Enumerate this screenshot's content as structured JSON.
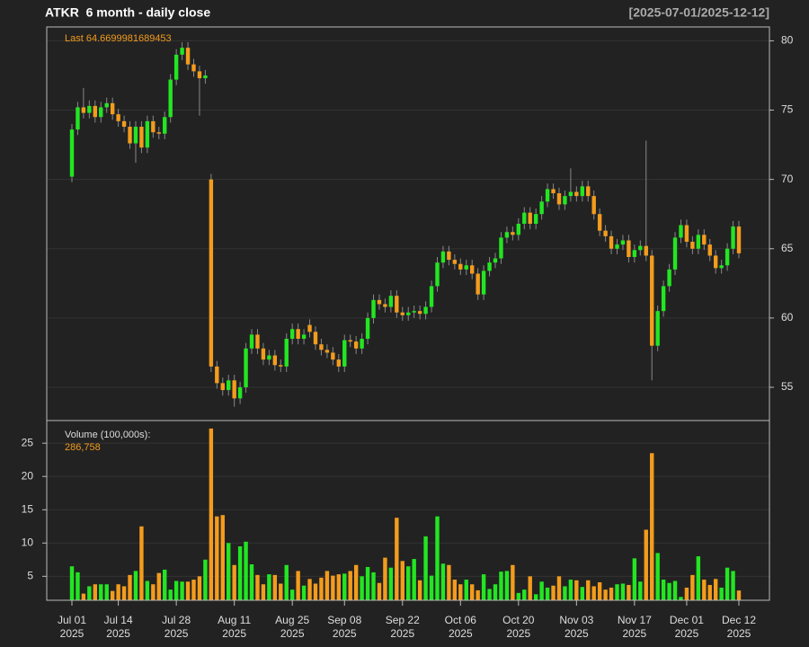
{
  "chart_data": {
    "type": "candlestick",
    "title": "ATKR  6 month - daily close",
    "subtitle": "[2025-07-01/2025-12-12]",
    "annotation": "Last 64.6699981689453",
    "up_color": "#22e622",
    "down_color": "#f39c1c",
    "grid": true,
    "x": [
      "2025-07-01",
      "2025-07-02",
      "2025-07-03",
      "2025-07-07",
      "2025-07-08",
      "2025-07-09",
      "2025-07-10",
      "2025-07-11",
      "2025-07-14",
      "2025-07-15",
      "2025-07-16",
      "2025-07-17",
      "2025-07-18",
      "2025-07-21",
      "2025-07-22",
      "2025-07-23",
      "2025-07-24",
      "2025-07-25",
      "2025-07-28",
      "2025-07-29",
      "2025-07-30",
      "2025-07-31",
      "2025-08-01",
      "2025-08-04",
      "2025-08-05",
      "2025-08-06",
      "2025-08-07",
      "2025-08-08",
      "2025-08-11",
      "2025-08-12",
      "2025-08-13",
      "2025-08-14",
      "2025-08-15",
      "2025-08-18",
      "2025-08-19",
      "2025-08-20",
      "2025-08-21",
      "2025-08-22",
      "2025-08-25",
      "2025-08-26",
      "2025-08-27",
      "2025-08-28",
      "2025-08-29",
      "2025-09-02",
      "2025-09-03",
      "2025-09-04",
      "2025-09-05",
      "2025-09-08",
      "2025-09-09",
      "2025-09-10",
      "2025-09-11",
      "2025-09-12",
      "2025-09-15",
      "2025-09-16",
      "2025-09-17",
      "2025-09-18",
      "2025-09-19",
      "2025-09-22",
      "2025-09-23",
      "2025-09-24",
      "2025-09-25",
      "2025-09-26",
      "2025-09-29",
      "2025-09-30",
      "2025-10-01",
      "2025-10-02",
      "2025-10-03",
      "2025-10-06",
      "2025-10-07",
      "2025-10-08",
      "2025-10-09",
      "2025-10-10",
      "2025-10-13",
      "2025-10-14",
      "2025-10-15",
      "2025-10-16",
      "2025-10-17",
      "2025-10-20",
      "2025-10-21",
      "2025-10-22",
      "2025-10-23",
      "2025-10-24",
      "2025-10-27",
      "2025-10-28",
      "2025-10-29",
      "2025-10-30",
      "2025-10-31",
      "2025-11-03",
      "2025-11-04",
      "2025-11-05",
      "2025-11-06",
      "2025-11-07",
      "2025-11-10",
      "2025-11-11",
      "2025-11-12",
      "2025-11-13",
      "2025-11-14",
      "2025-11-17",
      "2025-11-18",
      "2025-11-19",
      "2025-11-20",
      "2025-11-21",
      "2025-11-24",
      "2025-11-25",
      "2025-11-26",
      "2025-11-28",
      "2025-12-01",
      "2025-12-02",
      "2025-12-03",
      "2025-12-04",
      "2025-12-05",
      "2025-12-08",
      "2025-12-09",
      "2025-12-10",
      "2025-12-11",
      "2025-12-12"
    ],
    "open": [
      70.2,
      73.6,
      75.2,
      74.8,
      75.3,
      74.5,
      75.2,
      75.5,
      74.7,
      74.2,
      73.8,
      72.6,
      73.8,
      72.3,
      74.2,
      73.4,
      73.3,
      74.5,
      77.2,
      79.0,
      79.5,
      78.3,
      77.8,
      77.3,
      70.0,
      56.5,
      55.3,
      54.8,
      55.5,
      54.2,
      55.0,
      57.8,
      58.8,
      57.8,
      57.0,
      57.3,
      56.6,
      56.5,
      58.5,
      59.2,
      58.5,
      59.5,
      59.0,
      58.1,
      57.7,
      57.5,
      57.0,
      56.5,
      58.4,
      58.3,
      57.8,
      58.5,
      60.0,
      61.3,
      61.0,
      60.8,
      61.6,
      60.4,
      60.2,
      60.4,
      60.5,
      60.3,
      60.8,
      62.3,
      64.0,
      64.8,
      64.2,
      63.9,
      63.5,
      63.8,
      63.2,
      61.7,
      63.4,
      64.0,
      64.3,
      65.8,
      66.2,
      66.0,
      66.8,
      67.6,
      66.8,
      67.5,
      68.4,
      69.3,
      69.0,
      68.2,
      68.8,
      69.1,
      68.8,
      69.5,
      68.8,
      67.5,
      66.3,
      65.9,
      65.0,
      65.3,
      65.6,
      64.4,
      64.9,
      65.2,
      64.5,
      58.0,
      60.5,
      62.3,
      63.5,
      65.8,
      66.7,
      65.5,
      65.0,
      66.0,
      65.3,
      64.5,
      63.6,
      63.8,
      65.0,
      66.6
    ],
    "high": [
      74.0,
      75.6,
      76.6,
      75.7,
      75.7,
      75.6,
      75.9,
      75.9,
      75.1,
      74.6,
      74.2,
      74.2,
      74.2,
      74.6,
      74.6,
      73.8,
      74.9,
      77.6,
      79.4,
      79.9,
      79.9,
      78.7,
      78.2,
      77.9,
      70.4,
      56.9,
      55.7,
      55.9,
      55.9,
      55.4,
      58.2,
      59.2,
      59.2,
      58.2,
      57.7,
      57.7,
      57.0,
      58.9,
      59.6,
      59.6,
      59.2,
      59.9,
      59.4,
      58.5,
      58.1,
      57.9,
      57.4,
      58.8,
      58.8,
      58.7,
      58.9,
      60.4,
      61.7,
      61.7,
      61.4,
      62.0,
      62.0,
      60.8,
      60.8,
      60.9,
      60.9,
      61.2,
      62.7,
      64.4,
      65.2,
      65.2,
      64.6,
      64.3,
      64.2,
      64.2,
      63.6,
      63.8,
      64.4,
      64.7,
      66.2,
      66.6,
      66.6,
      67.2,
      68.0,
      68.0,
      67.9,
      68.8,
      69.7,
      69.7,
      69.4,
      69.2,
      70.8,
      69.5,
      69.9,
      69.9,
      69.2,
      67.9,
      66.7,
      66.3,
      65.7,
      66.0,
      66.0,
      65.3,
      65.6,
      72.8,
      64.9,
      60.9,
      62.7,
      63.9,
      66.2,
      67.1,
      67.1,
      65.9,
      66.4,
      66.4,
      65.7,
      64.9,
      64.2,
      65.4,
      67.0,
      67.0
    ],
    "low": [
      69.8,
      73.2,
      74.4,
      74.4,
      74.1,
      74.1,
      74.8,
      74.3,
      73.8,
      73.4,
      72.2,
      71.2,
      71.9,
      71.9,
      73.0,
      72.9,
      72.9,
      74.1,
      76.8,
      78.6,
      77.9,
      77.4,
      74.6,
      76.9,
      56.1,
      54.9,
      54.4,
      54.4,
      53.6,
      53.8,
      54.6,
      57.4,
      57.4,
      56.6,
      56.6,
      56.2,
      56.1,
      56.1,
      58.1,
      58.1,
      58.1,
      58.6,
      57.7,
      57.3,
      57.1,
      56.6,
      56.1,
      56.1,
      57.9,
      57.4,
      57.4,
      58.1,
      59.6,
      60.6,
      60.4,
      60.4,
      60.0,
      59.8,
      59.8,
      60.0,
      59.9,
      59.9,
      60.4,
      61.9,
      63.6,
      63.8,
      63.5,
      63.1,
      63.1,
      62.8,
      61.3,
      61.3,
      63.0,
      63.6,
      63.9,
      65.4,
      65.6,
      65.6,
      66.4,
      66.4,
      66.4,
      67.1,
      68.0,
      68.6,
      67.8,
      67.8,
      68.4,
      68.4,
      68.4,
      68.4,
      67.1,
      65.9,
      65.5,
      64.6,
      64.6,
      64.9,
      64.0,
      64.0,
      64.5,
      64.1,
      55.5,
      57.6,
      60.1,
      61.9,
      63.1,
      65.4,
      65.1,
      64.6,
      64.6,
      64.9,
      64.1,
      63.2,
      63.2,
      63.4,
      64.6,
      64.3
    ],
    "close": [
      73.6,
      75.2,
      74.8,
      75.3,
      74.5,
      75.2,
      75.5,
      74.7,
      74.2,
      73.8,
      72.6,
      73.8,
      72.3,
      74.2,
      73.4,
      73.3,
      74.5,
      77.2,
      79.0,
      79.5,
      78.3,
      77.8,
      77.3,
      77.5,
      56.5,
      55.3,
      54.8,
      55.5,
      54.2,
      55.0,
      57.8,
      58.8,
      57.8,
      57.0,
      57.3,
      56.6,
      56.5,
      58.5,
      59.2,
      58.5,
      58.8,
      59.0,
      58.1,
      57.7,
      57.5,
      57.0,
      56.5,
      58.4,
      58.3,
      57.8,
      58.5,
      60.0,
      61.3,
      61.0,
      60.8,
      61.6,
      60.4,
      60.2,
      60.4,
      60.5,
      60.3,
      60.8,
      62.3,
      64.0,
      64.8,
      64.2,
      63.9,
      63.5,
      63.8,
      63.2,
      61.7,
      63.4,
      64.0,
      64.3,
      65.8,
      66.2,
      66.0,
      66.8,
      67.6,
      66.8,
      67.5,
      68.4,
      69.3,
      69.0,
      68.2,
      68.8,
      69.1,
      68.8,
      69.5,
      68.8,
      67.5,
      66.3,
      65.9,
      65.0,
      65.3,
      65.6,
      64.4,
      64.9,
      65.2,
      64.5,
      58.0,
      60.5,
      62.3,
      63.5,
      65.8,
      66.7,
      65.5,
      65.0,
      66.0,
      65.3,
      64.5,
      63.6,
      63.8,
      65.0,
      66.6,
      64.6699981689453
    ],
    "ylim": [
      52.6,
      81.0
    ],
    "yticks": [
      55,
      60,
      65,
      70,
      75,
      80
    ],
    "xticks": [
      {
        "value": "2025-07-01",
        "label": [
          "Jul 01",
          "2025"
        ]
      },
      {
        "value": "2025-07-14",
        "label": [
          "Jul 14",
          "2025"
        ]
      },
      {
        "value": "2025-07-28",
        "label": [
          "Jul 28",
          "2025"
        ]
      },
      {
        "value": "2025-08-11",
        "label": [
          "Aug 11",
          "2025"
        ]
      },
      {
        "value": "2025-08-25",
        "label": [
          "Aug 25",
          "2025"
        ]
      },
      {
        "value": "2025-09-08",
        "label": [
          "Sep 08",
          "2025"
        ]
      },
      {
        "value": "2025-09-22",
        "label": [
          "Sep 22",
          "2025"
        ]
      },
      {
        "value": "2025-10-06",
        "label": [
          "Oct 06",
          "2025"
        ]
      },
      {
        "value": "2025-10-20",
        "label": [
          "Oct 20",
          "2025"
        ]
      },
      {
        "value": "2025-11-03",
        "label": [
          "Nov 03",
          "2025"
        ]
      },
      {
        "value": "2025-11-17",
        "label": [
          "Nov 17",
          "2025"
        ]
      },
      {
        "value": "2025-12-01",
        "label": [
          "Dec 01",
          "2025"
        ]
      },
      {
        "value": "2025-12-12",
        "label": [
          "Dec 12",
          "2025"
        ]
      }
    ],
    "volume": {
      "label": "Volume (100,000s):",
      "last_label": "286,758",
      "values": [
        6.5,
        5.6,
        2.4,
        3.5,
        3.8,
        3.8,
        3.8,
        2.8,
        3.8,
        3.5,
        5.2,
        5.8,
        12.5,
        4.3,
        3.8,
        5.5,
        6.0,
        3.0,
        4.3,
        4.2,
        4.2,
        4.5,
        5.0,
        7.5,
        27.2,
        14,
        14.2,
        10,
        6.7,
        9.5,
        10.2,
        6.8,
        5.2,
        3.8,
        5.3,
        5.2,
        3.9,
        6.7,
        3.0,
        5.8,
        3.6,
        4.6,
        3.9,
        4.8,
        5.8,
        5.1,
        5.3,
        5.4,
        5.8,
        6.7,
        5.0,
        6.4,
        5.6,
        4.0,
        7.8,
        6.3,
        13.8,
        7.3,
        6.5,
        7.6,
        4.4,
        11,
        5.1,
        14,
        6.9,
        6.7,
        4.5,
        3.8,
        4.5,
        3.8,
        2.9,
        5.3,
        3.1,
        3.8,
        5.7,
        5.8,
        6.7,
        2.5,
        3.0,
        5.0,
        2.3,
        4.2,
        3.3,
        3.6,
        5.0,
        3.5,
        4.5,
        4.4,
        3.4,
        4.4,
        3.5,
        4.1,
        3.0,
        3.3,
        3.8,
        3.9,
        3.7,
        7.7,
        4.2,
        12,
        23.5,
        8.5,
        4.5,
        4.0,
        4.3,
        1.9,
        3.3,
        5.2,
        8.0,
        4.5,
        3.7,
        4.6,
        3.3,
        6.3,
        5.8,
        2.86758
      ],
      "ylim": [
        1.4,
        28.4
      ],
      "yticks": [
        5,
        10,
        15,
        20,
        25
      ]
    }
  }
}
